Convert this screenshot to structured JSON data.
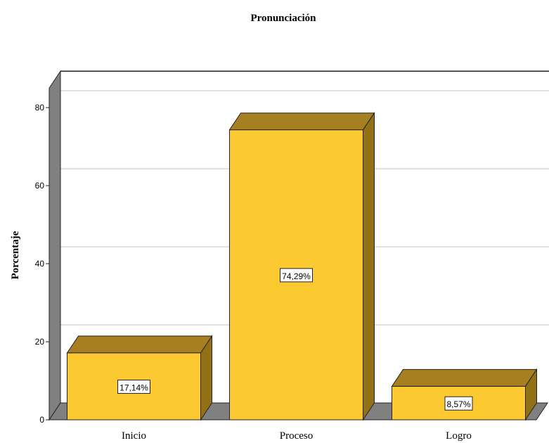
{
  "chart_data": {
    "type": "bar",
    "title": "Pronunciación",
    "xlabel": "",
    "ylabel": "Porcentaje",
    "categories": [
      "Inicio",
      "Proceso",
      "Logro"
    ],
    "values": [
      17.14,
      74.29,
      8.57
    ],
    "data_labels": [
      "17,14%",
      "74,29%",
      "8,57%"
    ],
    "yticks": [
      "0",
      "20",
      "40",
      "60",
      "80"
    ],
    "ylim": [
      0,
      85
    ],
    "grid": true,
    "style": "3d",
    "colors": {
      "bar_front": "#FDC931",
      "bar_top": "#A57F20",
      "bar_side": "#927015",
      "wall": "#808080",
      "grid": "#cfcfcf"
    }
  }
}
